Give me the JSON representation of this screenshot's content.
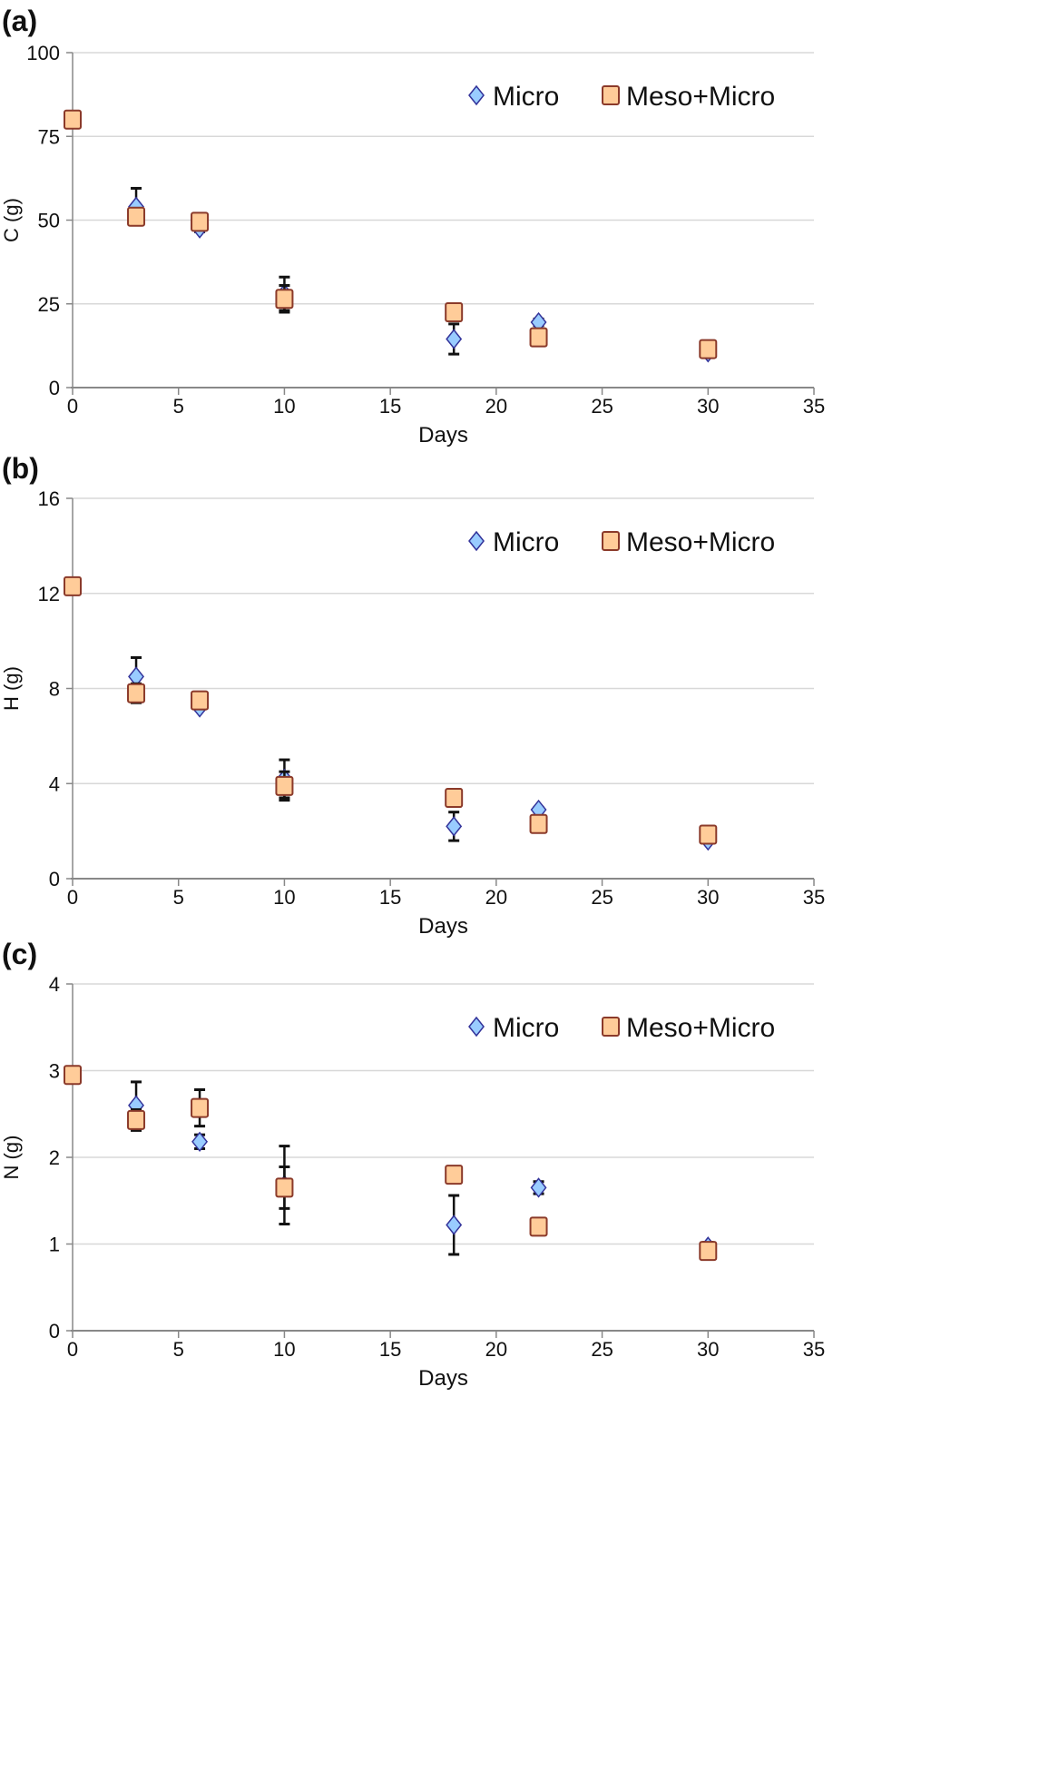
{
  "chart_data": [
    {
      "type": "scatter",
      "panel_label": "(a)",
      "xlabel": "Days",
      "ylabel": "C (g)",
      "xlim": [
        0,
        35
      ],
      "ylim": [
        0,
        100
      ],
      "xticks": [
        0,
        5,
        10,
        15,
        20,
        25,
        30,
        35
      ],
      "yticks": [
        0,
        25,
        50,
        75,
        100
      ],
      "grid": true,
      "legend": "top-right",
      "series": [
        {
          "name": "Micro",
          "marker": "diamond",
          "color": "#99ccff",
          "x": [
            3,
            6,
            10,
            18,
            22,
            30
          ],
          "y": [
            54,
            47.5,
            28,
            14.5,
            19.5,
            10.5
          ],
          "err": [
            5.5,
            1,
            5,
            4.5,
            1,
            0.5
          ]
        },
        {
          "name": "Meso+Micro",
          "marker": "square",
          "color": "#ffcc99",
          "x": [
            0,
            3,
            6,
            10,
            18,
            22,
            30
          ],
          "y": [
            80,
            51,
            49.5,
            26.5,
            22.5,
            15,
            11.5
          ],
          "err": [
            0,
            1.5,
            1,
            4,
            0.5,
            2.5,
            0.5
          ]
        }
      ]
    },
    {
      "type": "scatter",
      "panel_label": "(b)",
      "xlabel": "Days",
      "ylabel": "H (g)",
      "xlim": [
        0,
        35
      ],
      "ylim": [
        0,
        16
      ],
      "xticks": [
        0,
        5,
        10,
        15,
        20,
        25,
        30,
        35
      ],
      "yticks": [
        0,
        4,
        8,
        12,
        16
      ],
      "grid": true,
      "legend": "top-right",
      "series": [
        {
          "name": "Micro",
          "marker": "diamond",
          "color": "#99ccff",
          "x": [
            3,
            6,
            10,
            18,
            22,
            30
          ],
          "y": [
            8.5,
            7.2,
            4.2,
            2.2,
            2.9,
            1.6
          ],
          "err": [
            0.8,
            0.1,
            0.8,
            0.6,
            0.1,
            0.1
          ]
        },
        {
          "name": "Meso+Micro",
          "marker": "square",
          "color": "#ffcc99",
          "x": [
            0,
            3,
            6,
            10,
            18,
            22,
            30
          ],
          "y": [
            12.3,
            7.8,
            7.5,
            3.9,
            3.4,
            2.3,
            1.85
          ],
          "err": [
            0,
            0.4,
            0.2,
            0.6,
            0.1,
            0.3,
            0.1
          ]
        }
      ]
    },
    {
      "type": "scatter",
      "panel_label": "(c)",
      "xlabel": "Days",
      "ylabel": "N (g)",
      "xlim": [
        0,
        35
      ],
      "ylim": [
        0,
        4
      ],
      "xticks": [
        0,
        5,
        10,
        15,
        20,
        25,
        30,
        35
      ],
      "yticks": [
        0,
        1,
        2,
        3,
        4
      ],
      "grid": true,
      "legend": "top-right",
      "series": [
        {
          "name": "Micro",
          "marker": "diamond",
          "color": "#99ccff",
          "x": [
            3,
            6,
            10,
            18,
            22,
            30
          ],
          "y": [
            2.6,
            2.18,
            1.68,
            1.22,
            1.65,
            0.97
          ],
          "err": [
            0.27,
            0.08,
            0.45,
            0.34,
            0.07,
            0.05
          ]
        },
        {
          "name": "Meso+Micro",
          "marker": "square",
          "color": "#ffcc99",
          "x": [
            0,
            3,
            6,
            10,
            18,
            22,
            30
          ],
          "y": [
            2.95,
            2.43,
            2.57,
            1.65,
            1.8,
            1.2,
            0.92
          ],
          "err": [
            0,
            0.12,
            0.21,
            0.24,
            0.03,
            0.08,
            0.03
          ]
        }
      ]
    }
  ]
}
